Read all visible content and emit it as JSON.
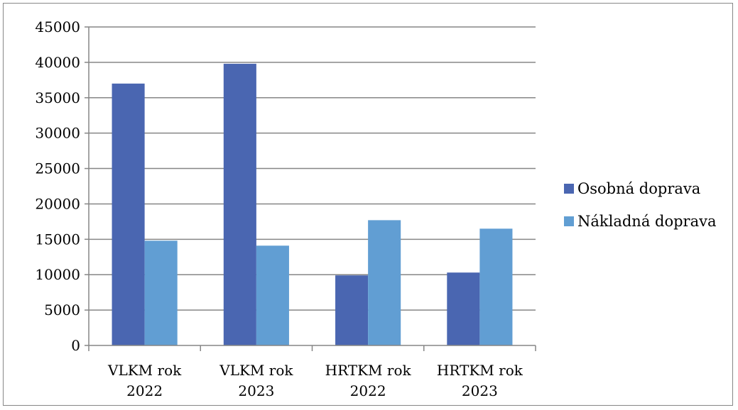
{
  "chart_data": {
    "type": "bar",
    "title": "",
    "xlabel": "",
    "ylabel": "",
    "categories": [
      [
        "VLKM rok",
        "2022"
      ],
      [
        "VLKM rok",
        "2023"
      ],
      [
        "HRTKM rok",
        "2022"
      ],
      [
        "HRTKM rok",
        "2023"
      ]
    ],
    "series": [
      {
        "name": "Osobná doprava",
        "values": [
          37000,
          39800,
          9900,
          10300
        ],
        "color": "#4a66b1"
      },
      {
        "name": "Nákladná doprava",
        "values": [
          14800,
          14100,
          17700,
          16500
        ],
        "color": "#619ed3"
      }
    ],
    "ylim": [
      0,
      45000
    ],
    "yticks": [
      0,
      5000,
      10000,
      15000,
      20000,
      25000,
      30000,
      35000,
      40000,
      45000
    ],
    "grid": true,
    "legend_position": "right"
  }
}
